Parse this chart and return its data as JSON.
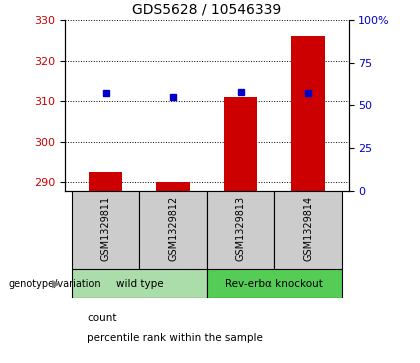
{
  "title": "GDS5628 / 10546339",
  "samples": [
    "GSM1329811",
    "GSM1329812",
    "GSM1329813",
    "GSM1329814"
  ],
  "counts": [
    292.5,
    290.2,
    311.0,
    326.0
  ],
  "percentile_ranks": [
    57,
    55,
    58,
    57
  ],
  "ylim_left": [
    288,
    330
  ],
  "ylim_right": [
    0,
    100
  ],
  "yticks_left": [
    290,
    300,
    310,
    320,
    330
  ],
  "yticks_right": [
    0,
    25,
    50,
    75,
    100
  ],
  "bar_color": "#cc0000",
  "marker_color": "#0000cc",
  "bar_width": 0.5,
  "groups": [
    {
      "label": "wild type",
      "samples": [
        0,
        1
      ],
      "color": "#aaddaa"
    },
    {
      "label": "Rev-erbα knockout",
      "samples": [
        2,
        3
      ],
      "color": "#55cc55"
    }
  ],
  "group_row_label": "genotype/variation",
  "legend_count_label": "count",
  "legend_pct_label": "percentile rank within the sample",
  "background_sample_row": "#cccccc",
  "tick_label_color_left": "#cc0000",
  "tick_label_color_right": "#0000cc",
  "title_fontsize": 10,
  "axis_fontsize": 8,
  "label_fontsize": 8
}
